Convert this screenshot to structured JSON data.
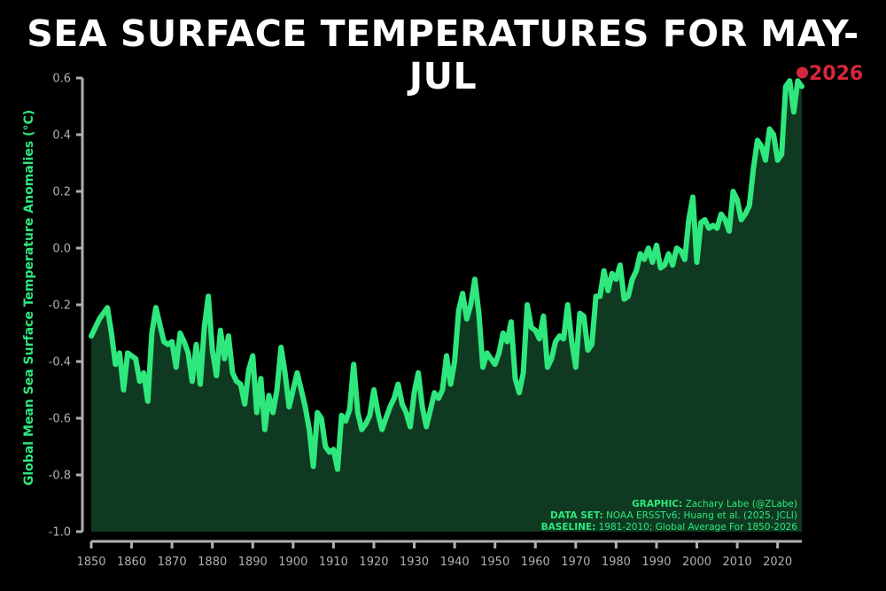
{
  "chart_data": {
    "type": "area",
    "title": "SEA SURFACE TEMPERATURES FOR MAY-JUL",
    "ylabel": "Global Mean Sea Surface Temperature Anomalies (°C)",
    "xlabel": "",
    "xlim": [
      1850,
      2026
    ],
    "ylim": [
      -1.0,
      0.6
    ],
    "x_ticks": [
      1850,
      1860,
      1870,
      1880,
      1890,
      1900,
      1910,
      1920,
      1930,
      1940,
      1950,
      1960,
      1970,
      1980,
      1990,
      2000,
      2010,
      2020
    ],
    "y_ticks": [
      -1.0,
      -0.8,
      -0.6,
      -0.4,
      -0.2,
      0.0,
      0.2,
      0.4,
      0.6
    ],
    "y_tick_labels": [
      "-1.0",
      "-0.8",
      "-0.6",
      "-0.4",
      "-0.2",
      "0.0",
      "0.2",
      "0.4",
      "0.6"
    ],
    "grid": false,
    "series": [
      {
        "x": [
          1850,
          1851,
          1852,
          1853,
          1854,
          1855,
          1856,
          1857,
          1858,
          1859,
          1860,
          1861,
          1862,
          1863,
          1864,
          1865,
          1866,
          1867,
          1868,
          1869,
          1870,
          1871,
          1872,
          1873,
          1874,
          1875,
          1876,
          1877,
          1878,
          1879,
          1880,
          1881,
          1882,
          1883,
          1884,
          1885,
          1886,
          1887,
          1888,
          1889,
          1890,
          1891,
          1892,
          1893,
          1894,
          1895,
          1896,
          1897,
          1898,
          1899,
          1900,
          1901,
          1902,
          1903,
          1904,
          1905,
          1906,
          1907,
          1908,
          1909,
          1910,
          1911,
          1912,
          1913,
          1914,
          1915,
          1916,
          1917,
          1918,
          1919,
          1920,
          1921,
          1922,
          1923,
          1924,
          1925,
          1926,
          1927,
          1928,
          1929,
          1930,
          1931,
          1932,
          1933,
          1934,
          1935,
          1936,
          1937,
          1938,
          1939,
          1940,
          1941,
          1942,
          1943,
          1944,
          1945,
          1946,
          1947,
          1948,
          1949,
          1950,
          1951,
          1952,
          1953,
          1954,
          1955,
          1956,
          1957,
          1958,
          1959,
          1960,
          1961,
          1962,
          1963,
          1964,
          1965,
          1966,
          1967,
          1968,
          1969,
          1970,
          1971,
          1972,
          1973,
          1974,
          1975,
          1976,
          1977,
          1978,
          1979,
          1980,
          1981,
          1982,
          1983,
          1984,
          1985,
          1986,
          1987,
          1988,
          1989,
          1990,
          1991,
          1992,
          1993,
          1994,
          1995,
          1996,
          1997,
          1998,
          1999,
          2000,
          2001,
          2002,
          2003,
          2004,
          2005,
          2006,
          2007,
          2008,
          2009,
          2010,
          2011,
          2012,
          2013,
          2014,
          2015,
          2016,
          2017,
          2018,
          2019,
          2020,
          2021,
          2022,
          2023,
          2024,
          2025,
          2026
        ],
        "y": [
          -0.31,
          -0.28,
          -0.25,
          -0.23,
          -0.21,
          -0.3,
          -0.41,
          -0.37,
          -0.5,
          -0.37,
          -0.38,
          -0.39,
          -0.47,
          -0.44,
          -0.54,
          -0.3,
          -0.21,
          -0.27,
          -0.33,
          -0.34,
          -0.33,
          -0.42,
          -0.3,
          -0.33,
          -0.37,
          -0.47,
          -0.34,
          -0.48,
          -0.28,
          -0.17,
          -0.36,
          -0.45,
          -0.29,
          -0.39,
          -0.31,
          -0.44,
          -0.47,
          -0.48,
          -0.55,
          -0.43,
          -0.38,
          -0.58,
          -0.46,
          -0.64,
          -0.52,
          -0.58,
          -0.5,
          -0.35,
          -0.44,
          -0.56,
          -0.5,
          -0.44,
          -0.5,
          -0.56,
          -0.64,
          -0.77,
          -0.58,
          -0.6,
          -0.7,
          -0.72,
          -0.71,
          -0.78,
          -0.59,
          -0.61,
          -0.57,
          -0.41,
          -0.58,
          -0.64,
          -0.62,
          -0.59,
          -0.5,
          -0.58,
          -0.64,
          -0.6,
          -0.56,
          -0.53,
          -0.48,
          -0.55,
          -0.58,
          -0.63,
          -0.51,
          -0.44,
          -0.56,
          -0.63,
          -0.57,
          -0.51,
          -0.53,
          -0.5,
          -0.38,
          -0.48,
          -0.4,
          -0.22,
          -0.16,
          -0.25,
          -0.2,
          -0.11,
          -0.23,
          -0.42,
          -0.37,
          -0.39,
          -0.41,
          -0.37,
          -0.3,
          -0.33,
          -0.26,
          -0.46,
          -0.51,
          -0.44,
          -0.2,
          -0.28,
          -0.29,
          -0.32,
          -0.24,
          -0.42,
          -0.39,
          -0.33,
          -0.31,
          -0.32,
          -0.2,
          -0.33,
          -0.42,
          -0.23,
          -0.24,
          -0.36,
          -0.34,
          -0.17,
          -0.17,
          -0.08,
          -0.15,
          -0.09,
          -0.11,
          -0.06,
          -0.18,
          -0.17,
          -0.11,
          -0.08,
          -0.02,
          -0.04,
          0.0,
          -0.05,
          0.01,
          -0.07,
          -0.06,
          -0.02,
          -0.06,
          0.0,
          -0.01,
          -0.04,
          0.1,
          0.18,
          -0.05,
          0.09,
          0.1,
          0.07,
          0.08,
          0.07,
          0.12,
          0.1,
          0.06,
          0.2,
          0.17,
          0.1,
          0.12,
          0.15,
          0.28,
          0.38,
          0.36,
          0.31,
          0.42,
          0.4,
          0.31,
          0.33,
          0.57,
          0.59,
          0.48,
          0.59,
          0.57
        ]
      }
    ],
    "colors": {
      "line": "#2ee87d",
      "fill": "#0f3a21",
      "axis": "#b0b0b0",
      "highlight": "#d7263d",
      "background": "#000000"
    },
    "highlight_point": {
      "x": 2026,
      "y": 0.57,
      "label": "2026"
    },
    "credits": [
      {
        "key": "GRAPHIC:",
        "value": " Zachary Labe (@ZLabe)"
      },
      {
        "key": "DATA SET:",
        "value": " NOAA ERSSTv6; Huang et al. (2025, JCLI)"
      },
      {
        "key": "BASELINE:",
        "value": " 1981-2010; Global Average For 1850-2026"
      }
    ]
  }
}
